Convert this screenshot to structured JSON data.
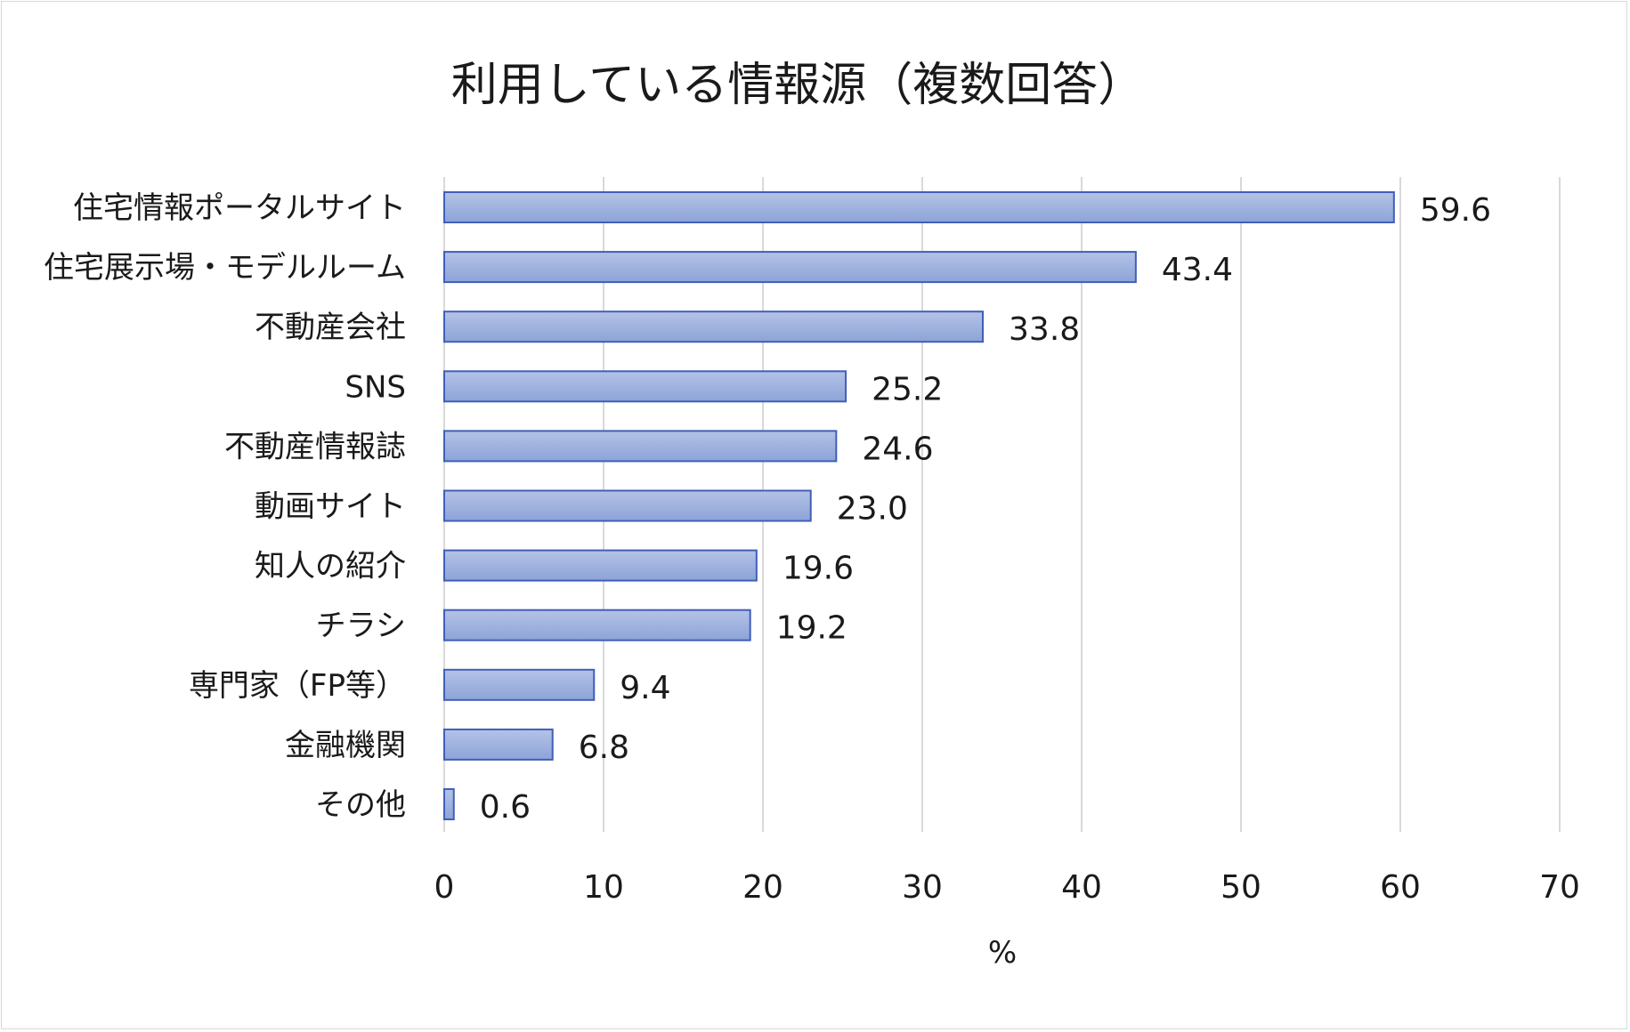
{
  "chart_data": {
    "type": "bar",
    "orientation": "horizontal",
    "title": "利用している情報源（複数回答）",
    "xlabel": "%",
    "ylabel": "",
    "xlim": [
      0,
      70
    ],
    "xticks": [
      0,
      10,
      20,
      30,
      40,
      50,
      60,
      70
    ],
    "grid": true,
    "categories": [
      "住宅情報ポータルサイト",
      "住宅展示場・モデルルーム",
      "不動産会社",
      "SNS",
      "不動産情報誌",
      "動画サイト",
      "知人の紹介",
      "チラシ",
      "専門家（FP等）",
      "金融機関",
      "その他"
    ],
    "values": [
      59.6,
      43.4,
      33.8,
      25.2,
      24.6,
      23.0,
      19.6,
      19.2,
      9.4,
      6.8,
      0.6
    ],
    "value_labels": [
      "59.6",
      "43.4",
      "33.8",
      "25.2",
      "24.6",
      "23.0",
      "19.6",
      "19.2",
      "9.4",
      "6.8",
      "0.6"
    ],
    "colors": {
      "bar_fill_top": "#b4c3e6",
      "bar_fill_bottom": "#8da3d8",
      "bar_stroke": "#3f5fb8",
      "grid": "#d9d9d9"
    }
  }
}
